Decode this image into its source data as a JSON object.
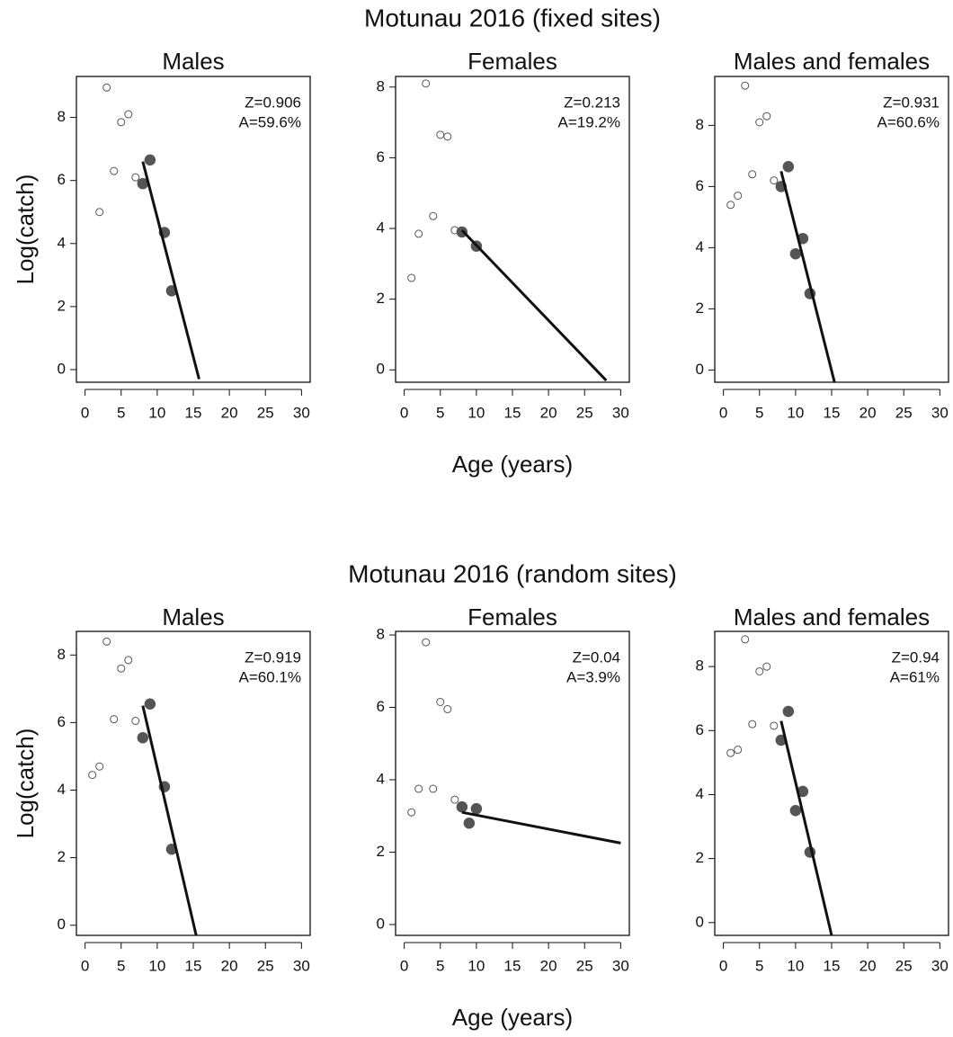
{
  "figures": [
    {
      "title": "Motunau 2016 (fixed sites)",
      "x_label": "Age (years)",
      "y_label": "Log(catch)"
    },
    {
      "title": "Motunau 2016 (random sites)",
      "x_label": "Age (years)",
      "y_label": "Log(catch)"
    }
  ],
  "chart_data": [
    {
      "type": "scatter",
      "title": "Males",
      "annotations": [
        "Z=0.906",
        "A=59.6%"
      ],
      "xlim": [
        -1.2,
        31.2
      ],
      "xticks": [
        0,
        5,
        10,
        15,
        20,
        25,
        30
      ],
      "ylim": [
        -0.4,
        9.3
      ],
      "yticks": [
        0,
        2,
        4,
        6,
        8
      ],
      "series": [
        {
          "marker": "open",
          "color": "#555555",
          "x": [
            2,
            3,
            4,
            5,
            6,
            7
          ],
          "values": [
            5.0,
            8.95,
            6.3,
            7.85,
            8.1,
            6.1
          ]
        },
        {
          "marker": "filled",
          "color": "#555555",
          "x": [
            8,
            9,
            11,
            12
          ],
          "values": [
            5.9,
            6.65,
            4.35,
            2.5
          ]
        },
        {
          "marker": "line",
          "color": "#111111",
          "x": [
            8,
            15.8
          ],
          "values": [
            6.6,
            -0.3
          ]
        }
      ]
    },
    {
      "type": "scatter",
      "title": "Females",
      "annotations": [
        "Z=0.213",
        "A=19.2%"
      ],
      "xlim": [
        -1.2,
        31.2
      ],
      "xticks": [
        0,
        5,
        10,
        15,
        20,
        25,
        30
      ],
      "ylim": [
        -0.35,
        8.3
      ],
      "yticks": [
        0,
        2,
        4,
        6,
        8
      ],
      "series": [
        {
          "marker": "open",
          "color": "#555555",
          "x": [
            1,
            2,
            3,
            4,
            5,
            6,
            7
          ],
          "values": [
            2.6,
            3.85,
            8.1,
            4.35,
            6.65,
            6.6,
            3.95
          ]
        },
        {
          "marker": "filled",
          "color": "#555555",
          "x": [
            8,
            10
          ],
          "values": [
            3.9,
            3.5
          ]
        },
        {
          "marker": "line",
          "color": "#111111",
          "x": [
            8,
            28
          ],
          "values": [
            3.95,
            -0.3
          ]
        }
      ]
    },
    {
      "type": "scatter",
      "title": "Males and females",
      "annotations": [
        "Z=0.931",
        "A=60.6%"
      ],
      "xlim": [
        -1.2,
        31.2
      ],
      "xticks": [
        0,
        5,
        10,
        15,
        20,
        25,
        30
      ],
      "ylim": [
        -0.4,
        9.6
      ],
      "yticks": [
        0,
        2,
        4,
        6,
        8
      ],
      "series": [
        {
          "marker": "open",
          "color": "#555555",
          "x": [
            1,
            2,
            3,
            4,
            5,
            6,
            7
          ],
          "values": [
            5.4,
            5.7,
            9.3,
            6.4,
            8.1,
            8.3,
            6.2
          ]
        },
        {
          "marker": "filled",
          "color": "#555555",
          "x": [
            8,
            9,
            10,
            11,
            12
          ],
          "values": [
            6.0,
            6.65,
            3.8,
            4.3,
            2.5
          ]
        },
        {
          "marker": "line",
          "color": "#111111",
          "x": [
            8,
            15.4
          ],
          "values": [
            6.5,
            -0.4
          ]
        }
      ]
    },
    {
      "type": "scatter",
      "title": "Males",
      "annotations": [
        "Z=0.919",
        "A=60.1%"
      ],
      "xlim": [
        -1.2,
        31.2
      ],
      "xticks": [
        0,
        5,
        10,
        15,
        20,
        25,
        30
      ],
      "ylim": [
        -0.3,
        8.7
      ],
      "yticks": [
        0,
        2,
        4,
        6,
        8
      ],
      "series": [
        {
          "marker": "open",
          "color": "#555555",
          "x": [
            1,
            2,
            3,
            4,
            5,
            6,
            7
          ],
          "values": [
            4.45,
            4.7,
            8.4,
            6.1,
            7.6,
            7.85,
            6.05
          ]
        },
        {
          "marker": "filled",
          "color": "#555555",
          "x": [
            8,
            9,
            11,
            12
          ],
          "values": [
            5.55,
            6.55,
            4.1,
            2.25
          ]
        },
        {
          "marker": "line",
          "color": "#111111",
          "x": [
            8,
            15.4
          ],
          "values": [
            6.5,
            -0.3
          ]
        }
      ]
    },
    {
      "type": "scatter",
      "title": "Females",
      "annotations": [
        "Z=0.04",
        "A=3.9%"
      ],
      "xlim": [
        -1.2,
        31.2
      ],
      "xticks": [
        0,
        5,
        10,
        15,
        20,
        25,
        30
      ],
      "ylim": [
        -0.3,
        8.1
      ],
      "yticks": [
        0,
        2,
        4,
        6,
        8
      ],
      "series": [
        {
          "marker": "open",
          "color": "#555555",
          "x": [
            1,
            2,
            3,
            4,
            5,
            6,
            7
          ],
          "values": [
            3.1,
            3.75,
            7.8,
            3.75,
            6.15,
            5.95,
            3.45
          ]
        },
        {
          "marker": "filled",
          "color": "#555555",
          "x": [
            8,
            9,
            10
          ],
          "values": [
            3.25,
            2.8,
            3.2
          ]
        },
        {
          "marker": "line",
          "color": "#111111",
          "x": [
            8,
            30
          ],
          "values": [
            3.1,
            2.25
          ]
        }
      ]
    },
    {
      "type": "scatter",
      "title": "Males and females",
      "annotations": [
        "Z=0.94",
        "A=61%"
      ],
      "xlim": [
        -1.2,
        31.2
      ],
      "xticks": [
        0,
        5,
        10,
        15,
        20,
        25,
        30
      ],
      "ylim": [
        -0.4,
        9.1
      ],
      "yticks": [
        0,
        2,
        4,
        6,
        8
      ],
      "series": [
        {
          "marker": "open",
          "color": "#555555",
          "x": [
            1,
            2,
            3,
            4,
            5,
            6,
            7
          ],
          "values": [
            5.3,
            5.4,
            8.85,
            6.2,
            7.85,
            8.0,
            6.15
          ]
        },
        {
          "marker": "filled",
          "color": "#555555",
          "x": [
            8,
            9,
            10,
            11,
            12
          ],
          "values": [
            5.7,
            6.6,
            3.5,
            4.1,
            2.2
          ]
        },
        {
          "marker": "line",
          "color": "#111111",
          "x": [
            8,
            15
          ],
          "values": [
            6.3,
            -0.4
          ]
        }
      ]
    }
  ]
}
